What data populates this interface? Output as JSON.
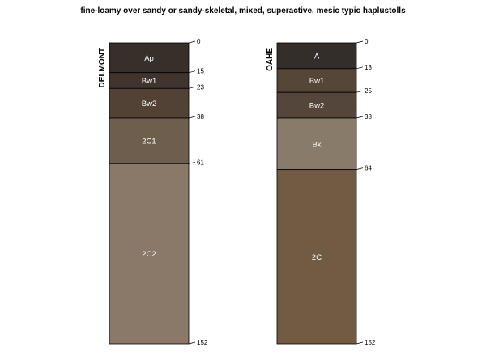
{
  "chart_data": {
    "type": "soil_profile",
    "title": "fine-loamy over sandy or sandy-skeletal, mixed, superactive, mesic typic haplustolls",
    "depth_unit": "cm",
    "depth_range": [
      0,
      152
    ],
    "profiles": [
      {
        "name": "DELMONT",
        "horizons": [
          {
            "name": "Ap",
            "top": 0,
            "bottom": 15,
            "color": "#372f2a"
          },
          {
            "name": "Bw1",
            "top": 15,
            "bottom": 23,
            "color": "#3f352e"
          },
          {
            "name": "Bw2",
            "top": 23,
            "bottom": 38,
            "color": "#524236"
          },
          {
            "name": "2C1",
            "top": 38,
            "bottom": 61,
            "color": "#6e5e4d"
          },
          {
            "name": "2C2",
            "top": 61,
            "bottom": 152,
            "color": "#8a7868"
          }
        ]
      },
      {
        "name": "OAHE",
        "horizons": [
          {
            "name": "A",
            "top": 0,
            "bottom": 13,
            "color": "#342e2b"
          },
          {
            "name": "Bw1",
            "top": 13,
            "bottom": 25,
            "color": "#554638"
          },
          {
            "name": "Bw2",
            "top": 25,
            "bottom": 38,
            "color": "#54463a"
          },
          {
            "name": "Bk",
            "top": 38,
            "bottom": 64,
            "color": "#887b6a"
          },
          {
            "name": "2C",
            "top": 64,
            "bottom": 152,
            "color": "#725b43"
          }
        ]
      }
    ]
  }
}
